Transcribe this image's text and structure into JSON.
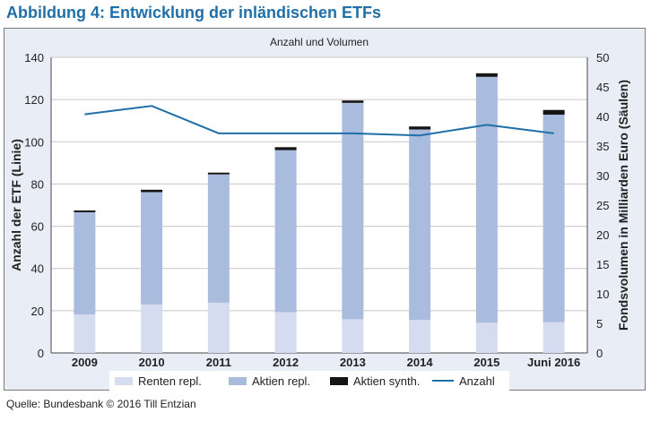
{
  "figure_title": "Abbildung 4: Entwicklung der inländischen ETFs",
  "source": "Quelle: Bundesbank © 2016 Till Entzian",
  "colors": {
    "title": "#1f6fa8",
    "renten": "#d6dcef",
    "aktien": "#a9bcde",
    "synth": "#151515",
    "line": "#1f6fa8",
    "frame_bg": "#e9eef6"
  },
  "chart_data": {
    "type": "bar",
    "title": "Anzahl und Volumen",
    "categories": [
      "2009",
      "2010",
      "2011",
      "2012",
      "2013",
      "2014",
      "2015",
      "Juni 2016"
    ],
    "ylabel_left": "Anzahl der ETF (Linie)",
    "ylabel_right": "Fondsvolumen in Milliarden Euro (Säulen)",
    "ylim_left": [
      0,
      140
    ],
    "ylim_right": [
      0,
      50
    ],
    "yticks_left": [
      0,
      20,
      40,
      60,
      80,
      100,
      120,
      140
    ],
    "yticks_right": [
      0,
      5,
      10,
      15,
      20,
      25,
      30,
      35,
      40,
      45,
      50
    ],
    "stacked": true,
    "series": [
      {
        "name": "Renten repl.",
        "axis": "right",
        "values": [
          6.5,
          8.2,
          8.5,
          6.9,
          5.7,
          5.6,
          5.1,
          5.2
        ]
      },
      {
        "name": "Aktien repl.",
        "axis": "right",
        "values": [
          17.3,
          19.0,
          21.7,
          27.4,
          36.6,
          32.2,
          41.6,
          35.1
        ]
      },
      {
        "name": "Aktien synth.",
        "axis": "right",
        "values": [
          0.3,
          0.4,
          0.3,
          0.5,
          0.4,
          0.5,
          0.6,
          0.8
        ]
      },
      {
        "name": "Anzahl",
        "type": "line",
        "axis": "left",
        "values": [
          113,
          117,
          104,
          104,
          104,
          103,
          108,
          104
        ]
      }
    ],
    "grid": "horizontal",
    "legend": "bottom"
  }
}
